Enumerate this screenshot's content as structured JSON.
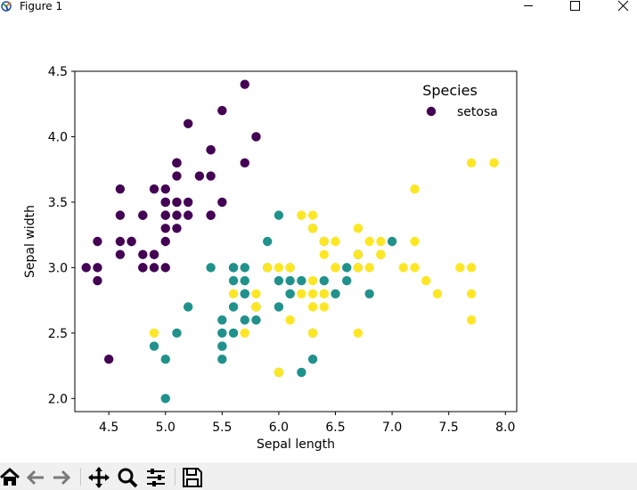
{
  "window": {
    "title": "Figure 1",
    "controls": [
      "minimize",
      "maximize",
      "close"
    ]
  },
  "toolbar": {
    "tools": [
      "home-icon",
      "back-arrow-icon",
      "forward-arrow-icon",
      "pan-icon",
      "zoom-icon",
      "configure-subplots-icon",
      "save-icon"
    ]
  },
  "chart_data": {
    "type": "scatter",
    "title": "",
    "xlabel": "Sepal length",
    "ylabel": "Sepal width",
    "xlim": [
      4.2,
      8.1
    ],
    "ylim": [
      1.9,
      4.5
    ],
    "xticks": [
      "4.5",
      "5.0",
      "5.5",
      "6.0",
      "6.5",
      "7.0",
      "7.5",
      "8.0"
    ],
    "yticks": [
      "2.0",
      "2.5",
      "3.0",
      "3.5",
      "4.0",
      "4.5"
    ],
    "grid": false,
    "legend": {
      "title": "Species",
      "placement": "top-right",
      "entries": [
        "setosa"
      ]
    },
    "series": [
      {
        "name": "setosa",
        "color": "#440154",
        "points": [
          [
            5.1,
            3.5
          ],
          [
            4.9,
            3.0
          ],
          [
            4.7,
            3.2
          ],
          [
            4.6,
            3.1
          ],
          [
            5.0,
            3.6
          ],
          [
            5.4,
            3.9
          ],
          [
            4.6,
            3.4
          ],
          [
            5.0,
            3.4
          ],
          [
            4.4,
            2.9
          ],
          [
            4.9,
            3.1
          ],
          [
            5.4,
            3.7
          ],
          [
            4.8,
            3.4
          ],
          [
            4.8,
            3.0
          ],
          [
            4.3,
            3.0
          ],
          [
            5.8,
            4.0
          ],
          [
            5.7,
            4.4
          ],
          [
            5.4,
            3.9
          ],
          [
            5.1,
            3.5
          ],
          [
            5.7,
            3.8
          ],
          [
            5.1,
            3.8
          ],
          [
            5.4,
            3.4
          ],
          [
            5.1,
            3.7
          ],
          [
            4.6,
            3.6
          ],
          [
            5.1,
            3.3
          ],
          [
            4.8,
            3.4
          ],
          [
            5.0,
            3.0
          ],
          [
            5.0,
            3.4
          ],
          [
            5.2,
            3.5
          ],
          [
            5.2,
            3.4
          ],
          [
            4.7,
            3.2
          ],
          [
            4.8,
            3.1
          ],
          [
            5.4,
            3.4
          ],
          [
            5.2,
            4.1
          ],
          [
            5.5,
            4.2
          ],
          [
            4.9,
            3.1
          ],
          [
            5.0,
            3.2
          ],
          [
            5.5,
            3.5
          ],
          [
            4.9,
            3.6
          ],
          [
            4.4,
            3.0
          ],
          [
            5.1,
            3.4
          ],
          [
            5.0,
            3.5
          ],
          [
            4.5,
            2.3
          ],
          [
            4.4,
            3.2
          ],
          [
            5.0,
            3.5
          ],
          [
            5.1,
            3.8
          ],
          [
            4.8,
            3.0
          ],
          [
            5.1,
            3.8
          ],
          [
            4.6,
            3.2
          ],
          [
            5.3,
            3.7
          ],
          [
            5.0,
            3.3
          ]
        ]
      },
      {
        "color": "#21918c",
        "points": [
          [
            7.0,
            3.2
          ],
          [
            6.4,
            3.2
          ],
          [
            6.9,
            3.1
          ],
          [
            5.5,
            2.3
          ],
          [
            6.5,
            2.8
          ],
          [
            5.7,
            2.8
          ],
          [
            6.3,
            3.3
          ],
          [
            4.9,
            2.4
          ],
          [
            6.6,
            2.9
          ],
          [
            5.2,
            2.7
          ],
          [
            5.0,
            2.0
          ],
          [
            5.9,
            3.0
          ],
          [
            6.0,
            2.2
          ],
          [
            6.1,
            2.9
          ],
          [
            5.6,
            2.9
          ],
          [
            6.7,
            3.1
          ],
          [
            5.6,
            3.0
          ],
          [
            5.8,
            2.7
          ],
          [
            6.2,
            2.2
          ],
          [
            5.6,
            2.5
          ],
          [
            5.9,
            3.2
          ],
          [
            6.1,
            2.8
          ],
          [
            6.3,
            2.5
          ],
          [
            6.1,
            2.8
          ],
          [
            6.4,
            2.9
          ],
          [
            6.6,
            3.0
          ],
          [
            6.8,
            2.8
          ],
          [
            6.7,
            3.0
          ],
          [
            6.0,
            2.9
          ],
          [
            5.7,
            2.6
          ],
          [
            5.5,
            2.4
          ],
          [
            5.5,
            2.4
          ],
          [
            5.8,
            2.7
          ],
          [
            6.0,
            2.7
          ],
          [
            5.4,
            3.0
          ],
          [
            6.0,
            3.4
          ],
          [
            6.7,
            3.1
          ],
          [
            6.3,
            2.3
          ],
          [
            5.6,
            3.0
          ],
          [
            5.5,
            2.5
          ],
          [
            5.5,
            2.6
          ],
          [
            6.1,
            3.0
          ],
          [
            5.8,
            2.6
          ],
          [
            5.0,
            2.3
          ],
          [
            5.6,
            2.7
          ],
          [
            5.7,
            3.0
          ],
          [
            5.7,
            2.9
          ],
          [
            6.2,
            2.9
          ],
          [
            5.1,
            2.5
          ],
          [
            5.7,
            2.8
          ]
        ]
      },
      {
        "color": "#fde725",
        "points": [
          [
            6.3,
            3.3
          ],
          [
            5.8,
            2.7
          ],
          [
            7.1,
            3.0
          ],
          [
            6.3,
            2.9
          ],
          [
            6.5,
            3.0
          ],
          [
            7.6,
            3.0
          ],
          [
            4.9,
            2.5
          ],
          [
            7.3,
            2.9
          ],
          [
            6.7,
            2.5
          ],
          [
            7.2,
            3.6
          ],
          [
            6.5,
            3.2
          ],
          [
            6.4,
            2.7
          ],
          [
            6.8,
            3.0
          ],
          [
            5.7,
            2.5
          ],
          [
            5.8,
            2.8
          ],
          [
            6.4,
            3.2
          ],
          [
            6.5,
            3.0
          ],
          [
            7.7,
            3.8
          ],
          [
            7.7,
            2.6
          ],
          [
            6.0,
            2.2
          ],
          [
            6.9,
            3.2
          ],
          [
            5.6,
            2.8
          ],
          [
            7.7,
            2.8
          ],
          [
            6.3,
            2.7
          ],
          [
            6.7,
            3.3
          ],
          [
            7.2,
            3.2
          ],
          [
            6.2,
            2.8
          ],
          [
            6.1,
            3.0
          ],
          [
            6.4,
            2.8
          ],
          [
            7.2,
            3.0
          ],
          [
            7.4,
            2.8
          ],
          [
            7.9,
            3.8
          ],
          [
            6.4,
            2.8
          ],
          [
            6.3,
            2.8
          ],
          [
            6.1,
            2.6
          ],
          [
            7.7,
            3.0
          ],
          [
            6.3,
            3.4
          ],
          [
            6.4,
            3.1
          ],
          [
            6.0,
            3.0
          ],
          [
            6.9,
            3.1
          ],
          [
            6.7,
            3.1
          ],
          [
            6.9,
            3.1
          ],
          [
            5.8,
            2.7
          ],
          [
            6.8,
            3.2
          ],
          [
            6.7,
            3.3
          ],
          [
            6.7,
            3.0
          ],
          [
            6.3,
            2.5
          ],
          [
            6.5,
            3.0
          ],
          [
            6.2,
            3.4
          ],
          [
            5.9,
            3.0
          ]
        ]
      }
    ]
  }
}
